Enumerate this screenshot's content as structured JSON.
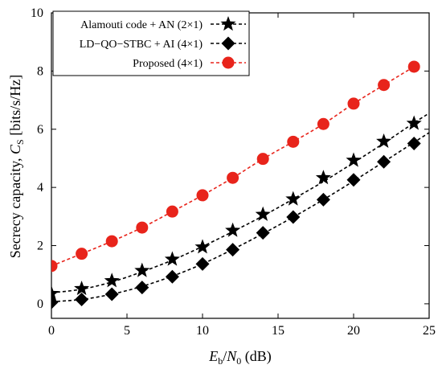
{
  "chart_data": {
    "type": "line",
    "title": "",
    "xlabel": {
      "E": "E",
      "b": "b",
      "slash": "/",
      "N": "N",
      "zero": "0",
      "unit": " (dB)"
    },
    "ylabel": {
      "main": "Secrecy capacity, ",
      "C": "C",
      "S": "S",
      "unit": " [bits/s/Hz]"
    },
    "xlim": [
      0,
      25
    ],
    "ylim": [
      -0.5,
      10
    ],
    "xticks": [
      0,
      5,
      10,
      15,
      20,
      25
    ],
    "yticks": [
      0,
      2,
      4,
      6,
      8,
      10
    ],
    "grid": false,
    "legend_position": "top-left",
    "series": [
      {
        "name": "Alamouti code + AN (2×1)",
        "marker": "star",
        "color": "#000000",
        "x": [
          0,
          2,
          4,
          6,
          8,
          10,
          12,
          14,
          16,
          18,
          20,
          22,
          24
        ],
        "y": [
          0.35,
          0.52,
          0.79,
          1.14,
          1.53,
          1.95,
          2.52,
          3.07,
          3.6,
          4.33,
          4.93,
          5.58,
          6.2
        ],
        "curve": [
          [
            0,
            0.38
          ],
          [
            2,
            0.5
          ],
          [
            4,
            0.75
          ],
          [
            6,
            1.1
          ],
          [
            8,
            1.5
          ],
          [
            10,
            1.97
          ],
          [
            12,
            2.48
          ],
          [
            14,
            3.02
          ],
          [
            16,
            3.6
          ],
          [
            18,
            4.2
          ],
          [
            20,
            4.85
          ],
          [
            22,
            5.52
          ],
          [
            24,
            6.22
          ],
          [
            25,
            6.55
          ]
        ]
      },
      {
        "name": "LD−QO−STBC + AI (4×1)",
        "marker": "diamond",
        "color": "#000000",
        "x": [
          0,
          2,
          4,
          6,
          8,
          10,
          12,
          14,
          16,
          18,
          20,
          22,
          24
        ],
        "y": [
          0.05,
          0.15,
          0.33,
          0.56,
          0.93,
          1.37,
          1.86,
          2.44,
          2.98,
          3.58,
          4.26,
          4.88,
          5.51
        ],
        "curve": [
          [
            0,
            0.07
          ],
          [
            2,
            0.15
          ],
          [
            4,
            0.33
          ],
          [
            6,
            0.6
          ],
          [
            8,
            0.95
          ],
          [
            10,
            1.37
          ],
          [
            12,
            1.87
          ],
          [
            14,
            2.41
          ],
          [
            16,
            2.98
          ],
          [
            18,
            3.58
          ],
          [
            20,
            4.22
          ],
          [
            22,
            4.88
          ],
          [
            24,
            5.55
          ],
          [
            25,
            5.88
          ]
        ]
      },
      {
        "name": "Proposed (4×1)",
        "marker": "circle",
        "color": "#e8241b",
        "x": [
          0,
          2,
          4,
          6,
          8,
          10,
          12,
          14,
          16,
          18,
          20,
          22,
          24
        ],
        "y": [
          1.3,
          1.72,
          2.15,
          2.62,
          3.17,
          3.73,
          4.33,
          4.98,
          5.57,
          6.18,
          6.88,
          7.52,
          8.15
        ],
        "curve": [
          [
            0,
            1.3
          ],
          [
            2,
            1.72
          ],
          [
            4,
            2.15
          ],
          [
            6,
            2.62
          ],
          [
            8,
            3.17
          ],
          [
            10,
            3.73
          ],
          [
            12,
            4.33
          ],
          [
            14,
            4.98
          ],
          [
            16,
            5.57
          ],
          [
            18,
            6.18
          ],
          [
            20,
            6.88
          ],
          [
            22,
            7.52
          ],
          [
            24,
            8.15
          ]
        ]
      }
    ]
  }
}
